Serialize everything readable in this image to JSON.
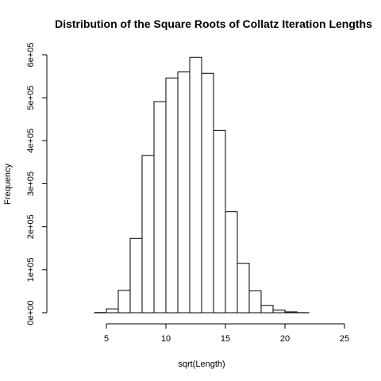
{
  "chart_data": {
    "type": "bar",
    "title": "Distribution of the Square Roots of Collatz Iteration Lengths",
    "xlabel": "sqrt(Length)",
    "ylabel": "Frequency",
    "xlim": [
      1,
      25
    ],
    "ylim": [
      0,
      600000
    ],
    "xticks": [
      5,
      10,
      15,
      20,
      25
    ],
    "xtick_labels": [
      "5",
      "10",
      "15",
      "20",
      "25"
    ],
    "yticks": [
      0,
      100000,
      200000,
      300000,
      400000,
      500000,
      600000
    ],
    "ytick_labels": [
      "0e+00",
      "1e+05",
      "2e+05",
      "3e+05",
      "4e+05",
      "5e+05",
      "6e+05"
    ],
    "bins": [
      {
        "x0": 1,
        "x1": 2,
        "value": 0
      },
      {
        "x0": 2,
        "x1": 3,
        "value": 0
      },
      {
        "x0": 3,
        "x1": 4,
        "value": 0
      },
      {
        "x0": 4,
        "x1": 5,
        "value": 500
      },
      {
        "x0": 5,
        "x1": 6,
        "value": 9000
      },
      {
        "x0": 6,
        "x1": 7,
        "value": 52000
      },
      {
        "x0": 7,
        "x1": 8,
        "value": 173000
      },
      {
        "x0": 8,
        "x1": 9,
        "value": 366000
      },
      {
        "x0": 9,
        "x1": 10,
        "value": 491000
      },
      {
        "x0": 10,
        "x1": 11,
        "value": 546000
      },
      {
        "x0": 11,
        "x1": 12,
        "value": 560000
      },
      {
        "x0": 12,
        "x1": 13,
        "value": 594000
      },
      {
        "x0": 13,
        "x1": 14,
        "value": 557000
      },
      {
        "x0": 14,
        "x1": 15,
        "value": 424000
      },
      {
        "x0": 15,
        "x1": 16,
        "value": 235000
      },
      {
        "x0": 16,
        "x1": 17,
        "value": 115000
      },
      {
        "x0": 17,
        "x1": 18,
        "value": 51000
      },
      {
        "x0": 18,
        "x1": 19,
        "value": 17000
      },
      {
        "x0": 19,
        "x1": 20,
        "value": 6000
      },
      {
        "x0": 20,
        "x1": 21,
        "value": 2000
      },
      {
        "x0": 21,
        "x1": 22,
        "value": 300
      },
      {
        "x0": 22,
        "x1": 23,
        "value": 0
      },
      {
        "x0": 23,
        "x1": 24,
        "value": 0
      },
      {
        "x0": 24,
        "x1": 25,
        "value": 0
      }
    ],
    "bar_fill": "#ffffff",
    "bar_stroke": "#000000",
    "grid": false
  }
}
